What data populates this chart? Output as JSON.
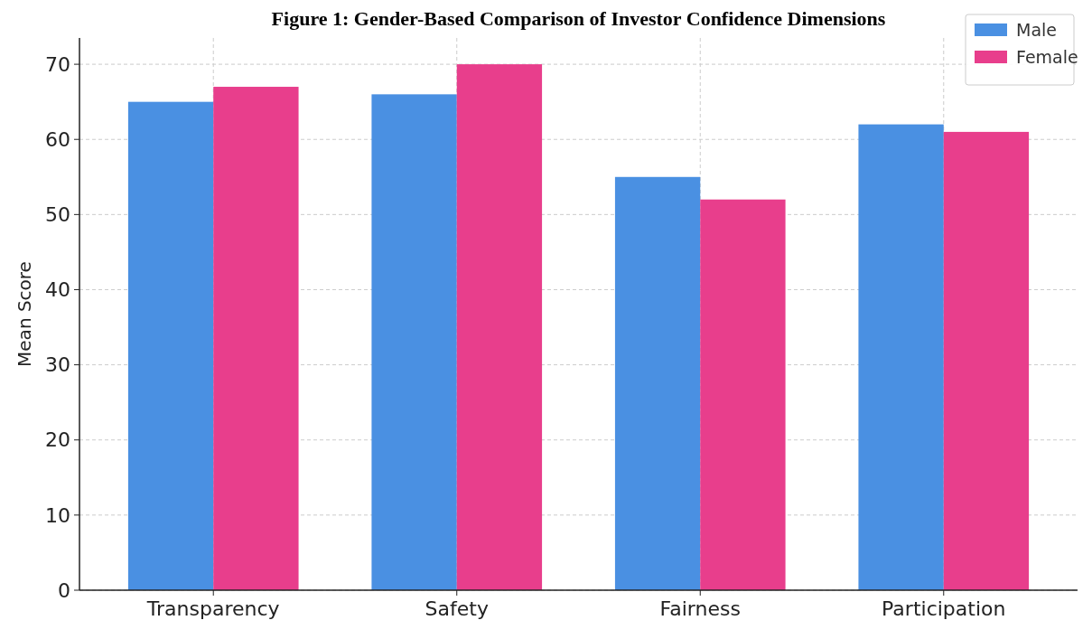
{
  "chart_data": {
    "type": "bar",
    "title": "Figure 1: Gender-Based Comparison of Investor Confidence Dimensions",
    "ylabel": "Mean Score",
    "categories": [
      "Transparency",
      "Safety",
      "Fairness",
      "Participation"
    ],
    "series": [
      {
        "name": "Male",
        "color": "#4a90e2",
        "values": [
          65,
          66,
          55,
          62
        ]
      },
      {
        "name": "Female",
        "color": "#e83e8c",
        "values": [
          67,
          70,
          52,
          61
        ]
      }
    ],
    "ylim": [
      0,
      73.5
    ],
    "yticks": [
      0,
      10,
      20,
      30,
      40,
      50,
      60,
      70
    ],
    "grid": true,
    "legend": "top right"
  }
}
